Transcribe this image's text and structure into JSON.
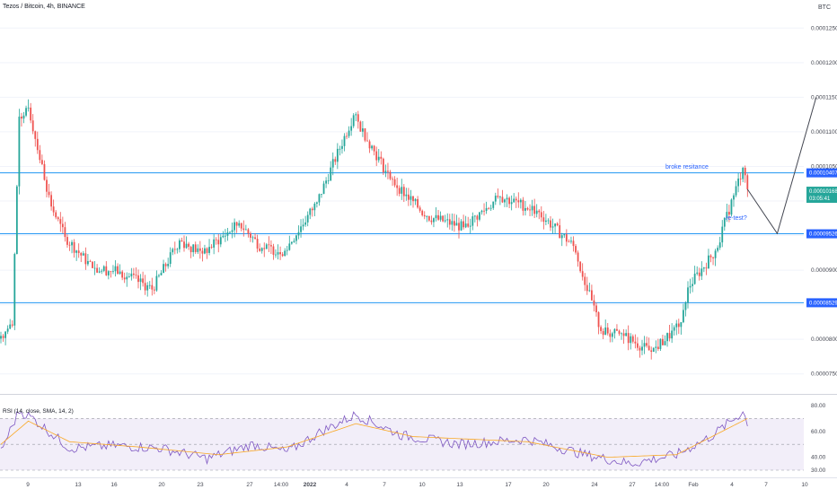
{
  "header": {
    "symbol_line": "Tezos / Bitcoin, 4h, BINANCE",
    "currency": "BTC",
    "rsi_label": "RSI (14, close, SMA, 14, 2)"
  },
  "colors": {
    "up": "#26a69a",
    "down": "#ef5350",
    "level_line": "#2196f3",
    "level_tag": "#2962ff",
    "current_tag": "#26a69a",
    "rsi_line": "#7e57c2",
    "rsi_ma": "#f9a825",
    "rsi_band": "#ede7f6",
    "projection": "#434651"
  },
  "chart_data": [
    {
      "type": "candlestick",
      "title": "Tezos / Bitcoin, 4h, BINANCE",
      "ylim": [
        7.25e-05,
        0.0001275
      ],
      "y_ticks": [
        "0.00007500",
        "0.00008000",
        "0.00008500",
        "0.00009000",
        "0.00009500",
        "0.00010000",
        "0.00010500",
        "0.00011000",
        "0.00011500",
        "0.00012000",
        "0.00012500"
      ],
      "x_ticks": [
        "9",
        "13",
        "16",
        "20",
        "23",
        "27",
        "14:00",
        "2022",
        "4",
        "7",
        "10",
        "13",
        "17",
        "20",
        "24",
        "27",
        "14:00",
        "Feb",
        "4",
        "7",
        "10"
      ],
      "anchors": [
        {
          "i": 0,
          "close": 8.05e-05
        },
        {
          "i": 5,
          "close": 8.2e-05
        },
        {
          "i": 8,
          "close": 0.0001122
        },
        {
          "i": 12,
          "close": 0.0001135
        },
        {
          "i": 22,
          "close": 9.92e-05
        },
        {
          "i": 28,
          "close": 9.48e-05
        },
        {
          "i": 40,
          "close": 9.03e-05
        },
        {
          "i": 52,
          "close": 8.98e-05
        },
        {
          "i": 66,
          "close": 8.72e-05
        },
        {
          "i": 78,
          "close": 9.43e-05
        },
        {
          "i": 88,
          "close": 9.24e-05
        },
        {
          "i": 104,
          "close": 9.68e-05
        },
        {
          "i": 114,
          "close": 9.32e-05
        },
        {
          "i": 124,
          "close": 9.28e-05
        },
        {
          "i": 138,
          "close": 9.98e-05
        },
        {
          "i": 154,
          "close": 0.0001124
        },
        {
          "i": 170,
          "close": 0.0001032
        },
        {
          "i": 186,
          "close": 9.78e-05
        },
        {
          "i": 202,
          "close": 9.62e-05
        },
        {
          "i": 218,
          "close": 0.0001006
        },
        {
          "i": 234,
          "close": 9.86e-05
        },
        {
          "i": 250,
          "close": 9.35e-05
        },
        {
          "i": 262,
          "close": 8.12e-05
        },
        {
          "i": 272,
          "close": 8.05e-05
        },
        {
          "i": 284,
          "close": 7.82e-05
        },
        {
          "i": 296,
          "close": 8.18e-05
        },
        {
          "i": 300,
          "close": 8.75e-05
        },
        {
          "i": 312,
          "close": 9.28e-05
        },
        {
          "i": 324,
          "close": 0.0001048
        },
        {
          "i": 326,
          "close": 0.0001017
        }
      ],
      "levels": [
        {
          "value": 0.00010407,
          "label": "0.00010407"
        },
        {
          "value": 9.526e-05,
          "label": "0.00009526"
        },
        {
          "value": 8.529e-05,
          "label": "0.00008529"
        }
      ],
      "current_price": {
        "value": 0.00010168,
        "label": "0.00010168",
        "countdown": "03:05:41"
      },
      "projection": [
        {
          "x": "3 Feb",
          "y": 0.0001017
        },
        {
          "x": "5 Feb",
          "y": 9.53e-05
        },
        {
          "x": "7 Feb",
          "y": 0.000115
        }
      ],
      "annotations": [
        {
          "text": "broke resitance"
        },
        {
          "text": "re-test?"
        }
      ]
    },
    {
      "type": "line",
      "title": "RSI (14, close, SMA, 14, 2)",
      "ylim": [
        30,
        80
      ],
      "y_ticks": [
        "80.00",
        "60.00",
        "40.00",
        "30.00"
      ],
      "band": [
        30,
        70
      ],
      "series": [
        {
          "name": "RSI",
          "anchors": [
            {
              "i": 0,
              "v": 45
            },
            {
              "i": 8,
              "v": 76
            },
            {
              "i": 14,
              "v": 70
            },
            {
              "i": 30,
              "v": 47
            },
            {
              "i": 50,
              "v": 49
            },
            {
              "i": 70,
              "v": 47
            },
            {
              "i": 90,
              "v": 39
            },
            {
              "i": 110,
              "v": 50
            },
            {
              "i": 125,
              "v": 44
            },
            {
              "i": 140,
              "v": 60
            },
            {
              "i": 155,
              "v": 73
            },
            {
              "i": 175,
              "v": 57
            },
            {
              "i": 200,
              "v": 50
            },
            {
              "i": 230,
              "v": 54
            },
            {
              "i": 255,
              "v": 42
            },
            {
              "i": 275,
              "v": 35
            },
            {
              "i": 295,
              "v": 42
            },
            {
              "i": 310,
              "v": 56
            },
            {
              "i": 324,
              "v": 75
            },
            {
              "i": 326,
              "v": 67
            }
          ]
        },
        {
          "name": "RSI-based MA",
          "anchors": [
            {
              "i": 0,
              "v": 50
            },
            {
              "i": 12,
              "v": 68
            },
            {
              "i": 30,
              "v": 52
            },
            {
              "i": 60,
              "v": 48
            },
            {
              "i": 95,
              "v": 42
            },
            {
              "i": 125,
              "v": 48
            },
            {
              "i": 155,
              "v": 66
            },
            {
              "i": 180,
              "v": 56
            },
            {
              "i": 230,
              "v": 52
            },
            {
              "i": 265,
              "v": 40
            },
            {
              "i": 295,
              "v": 42
            },
            {
              "i": 326,
              "v": 70
            }
          ]
        }
      ]
    }
  ]
}
